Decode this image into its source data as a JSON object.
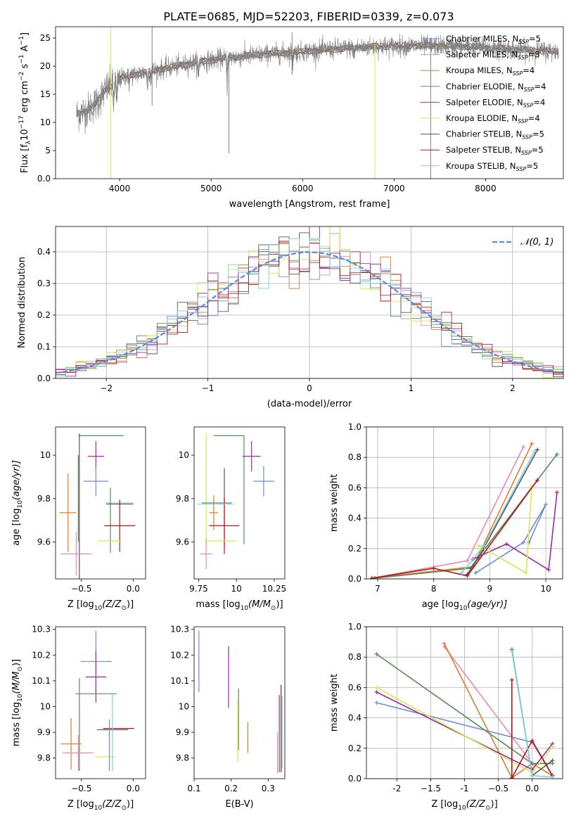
{
  "figure_title": "PLATE=0685, MJD=52203, FIBERID=0339, z=0.073",
  "colors": {
    "chabrier_miles": "#6a8fd8",
    "salpeter_miles": "#e88ab2",
    "kroupa_miles": "#e07b2a",
    "chabrier_elodie": "#5a8a5a",
    "salpeter_elodie": "#9b2aa8",
    "kroupa_elodie": "#d8e84a",
    "chabrier_stelib": "#555555",
    "salpeter_stelib": "#b01818",
    "kroupa_stelib": "#7fd2e0",
    "spectrum_data": "#808080",
    "gaussian": "#5b8bd9"
  },
  "chart_data": [
    {
      "id": "spectrum",
      "type": "line",
      "xlabel": "wavelength [Angstrom, rest frame]",
      "ylabel_main": "Flux [f",
      "ylabel_sub": "λ",
      "ylabel_mid": "10",
      "ylabel_sup1": "−17",
      "ylabel_rest": " erg cm",
      "ylabel_sup2": "−2",
      "ylabel_rest2": " s",
      "ylabel_sup3": "−1",
      "ylabel_rest3": " A",
      "ylabel_sup4": "−1",
      "ylabel_end": "]",
      "xlim": [
        3300,
        8850
      ],
      "ylim": [
        0,
        27
      ],
      "xticks": [
        4000,
        5000,
        6000,
        7000,
        8000
      ],
      "yticks": [
        0,
        5,
        10,
        15,
        20,
        25
      ],
      "continuum_anchor_points": [
        [
          3530,
          11.5
        ],
        [
          3650,
          12.2
        ],
        [
          3750,
          13.5
        ],
        [
          3860,
          16.0
        ],
        [
          3950,
          17.0
        ],
        [
          4050,
          18.2
        ],
        [
          4250,
          18.8
        ],
        [
          4500,
          19.6
        ],
        [
          4800,
          20.6
        ],
        [
          5100,
          21.3
        ],
        [
          5500,
          22.0
        ],
        [
          6000,
          22.6
        ],
        [
          6500,
          23.2
        ],
        [
          6800,
          23.5
        ],
        [
          7200,
          23.6
        ],
        [
          7600,
          23.6
        ],
        [
          8000,
          23.3
        ],
        [
          8500,
          22.8
        ],
        [
          8800,
          22.6
        ]
      ],
      "absorption_lines": [
        [
          3934,
          5
        ],
        [
          3969,
          4
        ],
        [
          4102,
          2
        ],
        [
          4304,
          3
        ],
        [
          4341,
          2
        ],
        [
          4861,
          3
        ],
        [
          5175,
          5
        ],
        [
          5890,
          3
        ],
        [
          6563,
          2
        ]
      ],
      "legend": [
        {
          "key": "chabrier_miles",
          "base": "Chabrier MILES, N",
          "sub": "SSP",
          "tail": "=5"
        },
        {
          "key": "salpeter_miles",
          "base": "Salpeter MILES, N",
          "sub": "SSP",
          "tail": "=3"
        },
        {
          "key": "kroupa_miles",
          "base": "Kroupa MILES, N",
          "sub": "SSP",
          "tail": "=4"
        },
        {
          "key": "chabrier_elodie",
          "base": "Chabrier ELODIE, N",
          "sub": "SSP",
          "tail": "=4"
        },
        {
          "key": "salpeter_elodie",
          "base": "Salpeter ELODIE, N",
          "sub": "SSP",
          "tail": "=4"
        },
        {
          "key": "kroupa_elodie",
          "base": "Kroupa ELODIE, N",
          "sub": "SSP",
          "tail": "=4"
        },
        {
          "key": "chabrier_stelib",
          "base": "Chabrier STELIB, N",
          "sub": "SSP",
          "tail": "=5"
        },
        {
          "key": "salpeter_stelib",
          "base": "Salpeter STELIB, N",
          "sub": "SSP",
          "tail": "=5"
        },
        {
          "key": "kroupa_stelib",
          "base": "Kroupa STELIB, N",
          "sub": "SSP",
          "tail": "=5"
        }
      ]
    },
    {
      "id": "residuals",
      "type": "bar",
      "xlabel": "(data-model)/error",
      "ylabel": "Normed distribution",
      "xlim": [
        -2.5,
        2.5
      ],
      "ylim": [
        0,
        0.48
      ],
      "xticks": [
        -2,
        -1,
        0,
        1,
        2
      ],
      "yticks": [
        0.0,
        0.1,
        0.2,
        0.3,
        0.4
      ],
      "grid": true,
      "bin_width": 0.1,
      "legend_label": "𝒩(0, 1)",
      "legend_position": "upper-right"
    },
    {
      "id": "age_vs_Z",
      "type": "errorbar",
      "xlabel": "Z [log",
      "xlabel_sub": "10",
      "xlabel_tail": "(Z/Z",
      "xlabel_sub2": "⊙",
      "xlabel_end": ")]",
      "ylabel": "age  [log",
      "ylabel_sub": "10",
      "ylabel_tail": "(age/yr)]",
      "xlim": [
        -0.75,
        0.12
      ],
      "ylim": [
        9.43,
        10.13
      ],
      "xticks": [
        -0.5,
        0.0
      ],
      "yticks": [
        9.6,
        9.8,
        10.0
      ],
      "points": [
        {
          "key": "chabrier_elodie",
          "x": -0.31,
          "y": 10.09,
          "xerr": 0.22,
          "yerr": 0.0
        },
        {
          "key": "salpeter_elodie",
          "x": -0.36,
          "y": 9.995,
          "xerr": 0.08,
          "yerr": 0.07
        },
        {
          "key": "chabrier_miles",
          "x": -0.36,
          "y": 9.88,
          "xerr": 0.12,
          "yerr": 0.07
        },
        {
          "key": "kroupa_miles",
          "x": -0.63,
          "y": 9.735,
          "xerr": 0.08,
          "yerr": 0.18
        },
        {
          "key": "chabrier_stelib",
          "x": -0.52,
          "y": 9.76,
          "xerr": 0.0,
          "yerr": 0.34
        },
        {
          "key": "chabrier_elodie",
          "x": -0.53,
          "y": 9.8,
          "xerr": 0.0,
          "yerr": 0.2
        },
        {
          "key": "kroupa_stelib",
          "x": -0.13,
          "y": 9.78,
          "xerr": 0.13,
          "yerr": 0.0
        },
        {
          "key": "chabrier_stelib",
          "x": -0.13,
          "y": 9.775,
          "xerr": 0.13,
          "yerr": 0.0
        },
        {
          "key": "chabrier_elodie",
          "x": -0.22,
          "y": 9.7,
          "xerr": 0.0,
          "yerr": 0.15
        },
        {
          "key": "salpeter_stelib",
          "x": -0.13,
          "y": 9.675,
          "xerr": 0.15,
          "yerr": 0.12
        },
        {
          "key": "kroupa_elodie",
          "x": -0.23,
          "y": 9.605,
          "xerr": 0.11,
          "yerr": 0.0
        },
        {
          "key": "salpeter_miles",
          "x": -0.55,
          "y": 9.545,
          "xerr": 0.15,
          "yerr": 0.1
        }
      ]
    },
    {
      "id": "age_vs_mass",
      "type": "errorbar",
      "xlabel": "mass [log",
      "xlabel_sub": "10",
      "xlabel_tail": "(M/M",
      "xlabel_sub2": "⊙",
      "xlabel_end": ")]",
      "xlim": [
        9.72,
        10.32
      ],
      "ylim": [
        9.43,
        10.13
      ],
      "xticks": [
        9.75,
        10.0,
        10.25
      ],
      "yticks": [
        9.6,
        9.8,
        10.0
      ],
      "points": [
        {
          "key": "chabrier_elodie",
          "x": 9.95,
          "y": 10.09,
          "xerr": 0.1,
          "yerr": 0.0
        },
        {
          "key": "chabrier_elodie",
          "x": 10.05,
          "y": 9.84,
          "xerr": 0.0,
          "yerr": 0.25
        },
        {
          "key": "salpeter_elodie",
          "x": 10.1,
          "y": 9.995,
          "xerr": 0.06,
          "yerr": 0.07
        },
        {
          "key": "chabrier_miles",
          "x": 10.18,
          "y": 9.88,
          "xerr": 0.07,
          "yerr": 0.07
        },
        {
          "key": "kroupa_elodie",
          "x": 9.8,
          "y": 9.83,
          "xerr": 0.0,
          "yerr": 0.27
        },
        {
          "key": "kroupa_miles",
          "x": 9.85,
          "y": 9.735,
          "xerr": 0.03,
          "yerr": 0.08
        },
        {
          "key": "chabrier_stelib",
          "x": 9.92,
          "y": 9.76,
          "xerr": 0.0,
          "yerr": 0.18
        },
        {
          "key": "salpeter_stelib",
          "x": 9.92,
          "y": 9.675,
          "xerr": 0.1,
          "yerr": 0.13
        },
        {
          "key": "kroupa_stelib",
          "x": 9.86,
          "y": 9.775,
          "xerr": 0.12,
          "yerr": 0.0
        },
        {
          "key": "chabrier_elodie",
          "x": 9.87,
          "y": 9.78,
          "xerr": 0.1,
          "yerr": 0.0
        },
        {
          "key": "kroupa_elodie",
          "x": 9.9,
          "y": 9.605,
          "xerr": 0.1,
          "yerr": 0.0
        },
        {
          "key": "salpeter_miles",
          "x": 9.8,
          "y": 9.545,
          "xerr": 0.04,
          "yerr": 0.07
        }
      ]
    },
    {
      "id": "weight_vs_age",
      "type": "line",
      "xlabel": "age  [log",
      "xlabel_sub": "10",
      "xlabel_tail": "(age/yr)]",
      "ylabel": "mass weight",
      "xlim": [
        6.8,
        10.3
      ],
      "ylim": [
        0.0,
        1.0
      ],
      "xticks": [
        7,
        8,
        9,
        10
      ],
      "yticks": [
        0.0,
        0.2,
        0.4,
        0.6,
        0.8,
        1.0
      ],
      "grid": true,
      "series": [
        {
          "key": "chabrier_miles",
          "points": [
            [
              8.75,
              0.04
            ],
            [
              9.6,
              0.24
            ],
            [
              10.0,
              0.49
            ],
            [
              9.7,
              0.24
            ]
          ]
        },
        {
          "key": "salpeter_miles",
          "points": [
            [
              6.9,
              0.005
            ],
            [
              8.6,
              0.12
            ],
            [
              9.6,
              0.87
            ]
          ]
        },
        {
          "key": "kroupa_miles",
          "points": [
            [
              6.9,
              0.005
            ],
            [
              8.7,
              0.08
            ],
            [
              9.75,
              0.89
            ]
          ]
        },
        {
          "key": "chabrier_elodie",
          "points": [
            [
              6.95,
              0.005
            ],
            [
              8.65,
              0.07
            ],
            [
              10.2,
              0.82
            ]
          ]
        },
        {
          "key": "salpeter_elodie",
          "points": [
            [
              8.7,
              0.13
            ],
            [
              9.3,
              0.23
            ],
            [
              10.05,
              0.06
            ],
            [
              10.2,
              0.57
            ]
          ]
        },
        {
          "key": "kroupa_elodie",
          "points": [
            [
              8.8,
              0.22
            ],
            [
              9.65,
              0.04
            ],
            [
              9.75,
              0.61
            ]
          ]
        },
        {
          "key": "chabrier_stelib",
          "points": [
            [
              8.6,
              0.03
            ],
            [
              8.8,
              0.14
            ],
            [
              9.85,
              0.85
            ]
          ]
        },
        {
          "key": "salpeter_stelib",
          "points": [
            [
              6.9,
              0.005
            ],
            [
              8.0,
              0.07
            ],
            [
              8.6,
              0.02
            ],
            [
              9.85,
              0.65
            ]
          ]
        },
        {
          "key": "kroupa_stelib",
          "points": [
            [
              8.5,
              0.04
            ],
            [
              8.9,
              0.22
            ],
            [
              9.8,
              0.84
            ]
          ]
        }
      ]
    },
    {
      "id": "mass_vs_Z",
      "type": "errorbar",
      "xlabel": "Z [log",
      "xlabel_sub": "10",
      "xlabel_tail": "(Z/Z",
      "xlabel_sub2": "⊙",
      "xlabel_end": ")]",
      "ylabel": "mass [log",
      "ylabel_sub": "10",
      "ylabel_tail": "(M/M",
      "ylabel_sub2": "⊙",
      "ylabel_end": ")]",
      "xlim": [
        -0.75,
        0.12
      ],
      "ylim": [
        9.72,
        10.31
      ],
      "xticks": [
        -0.5,
        0.0
      ],
      "yticks": [
        9.8,
        9.9,
        10.0,
        10.1,
        10.2,
        10.3
      ],
      "points": [
        {
          "key": "chabrier_miles",
          "x": -0.36,
          "y": 10.175,
          "xerr": 0.15,
          "yerr": 0.12
        },
        {
          "key": "salpeter_elodie",
          "x": -0.36,
          "y": 10.115,
          "xerr": 0.1,
          "yerr": 0.1
        },
        {
          "key": "chabrier_elodie",
          "x": -0.36,
          "y": 10.05,
          "xerr": 0.2,
          "yerr": 0.0
        },
        {
          "key": "chabrier_elodie",
          "x": -0.52,
          "y": 9.93,
          "xerr": 0.0,
          "yerr": 0.18
        },
        {
          "key": "kroupa_miles",
          "x": -0.6,
          "y": 9.855,
          "xerr": 0.1,
          "yerr": 0.1
        },
        {
          "key": "salpeter_miles",
          "x": -0.53,
          "y": 9.82,
          "xerr": 0.15,
          "yerr": 0.07
        },
        {
          "key": "kroupa_elodie",
          "x": -0.27,
          "y": 9.805,
          "xerr": 0.1,
          "yerr": 0.0
        },
        {
          "key": "chabrier_stelib",
          "x": -0.2,
          "y": 9.91,
          "xerr": 0.15,
          "yerr": 0.0
        },
        {
          "key": "salpeter_stelib",
          "x": -0.14,
          "y": 9.915,
          "xerr": 0.15,
          "yerr": 0.0
        },
        {
          "key": "kroupa_stelib",
          "x": -0.2,
          "y": 9.9,
          "xerr": 0.0,
          "yerr": 0.15
        },
        {
          "key": "chabrier_miles",
          "x": -0.23,
          "y": 9.85,
          "xerr": 0.0,
          "yerr": 0.1
        }
      ]
    },
    {
      "id": "mass_vs_ebv",
      "type": "errorbar",
      "xlabel": "E(B-V)",
      "xlim": [
        0.1,
        0.345
      ],
      "ylim": [
        9.72,
        10.31
      ],
      "xticks": [
        0.1,
        0.2,
        0.3
      ],
      "yticks": [
        9.8,
        9.9,
        10.0,
        10.1,
        10.2,
        10.3
      ],
      "points": [
        {
          "key": "chabrier_miles",
          "x": 0.113,
          "y": 10.175,
          "xerr": 0.0,
          "yerr": 0.12
        },
        {
          "key": "salpeter_elodie",
          "x": 0.193,
          "y": 10.115,
          "xerr": 0.0,
          "yerr": 0.12
        },
        {
          "key": "chabrier_elodie",
          "x": 0.22,
          "y": 9.95,
          "xerr": 0.0,
          "yerr": 0.12
        },
        {
          "key": "kroupa_elodie",
          "x": 0.218,
          "y": 9.905,
          "xerr": 0.0,
          "yerr": 0.12
        },
        {
          "key": "kroupa_miles",
          "x": 0.245,
          "y": 9.88,
          "xerr": 0.0,
          "yerr": 0.06
        },
        {
          "key": "salpeter_miles",
          "x": 0.325,
          "y": 9.82,
          "xerr": 0.0,
          "yerr": 0.08
        },
        {
          "key": "chabrier_stelib",
          "x": 0.33,
          "y": 9.895,
          "xerr": 0.0,
          "yerr": 0.15
        },
        {
          "key": "salpeter_stelib",
          "x": 0.335,
          "y": 9.915,
          "xerr": 0.0,
          "yerr": 0.17
        },
        {
          "key": "kroupa_stelib",
          "x": 0.338,
          "y": 9.9,
          "xerr": 0.0,
          "yerr": 0.14
        }
      ]
    },
    {
      "id": "weight_vs_Z",
      "type": "line",
      "xlabel": "Z [log",
      "xlabel_sub": "10",
      "xlabel_tail": "(Z/Z",
      "xlabel_sub2": "⊙",
      "xlabel_end": ")]",
      "ylabel": "mass weight",
      "xlim": [
        -2.45,
        0.45
      ],
      "ylim": [
        0.0,
        1.0
      ],
      "xticks": [
        -2.0,
        -1.5,
        -1.0,
        -0.5,
        0.0
      ],
      "yticks": [
        0.0,
        0.2,
        0.4,
        0.6,
        0.8,
        1.0
      ],
      "grid": true,
      "series": [
        {
          "key": "chabrier_miles",
          "points": [
            [
              -2.3,
              0.5
            ],
            [
              0.0,
              0.24
            ],
            [
              0.3,
              0.02
            ]
          ]
        },
        {
          "key": "salpeter_miles",
          "points": [
            [
              -1.3,
              0.87
            ],
            [
              0.0,
              0.1
            ],
            [
              0.3,
              0.02
            ]
          ]
        },
        {
          "key": "kroupa_miles",
          "points": [
            [
              -1.3,
              0.89
            ],
            [
              -0.3,
              0.005
            ],
            [
              0.0,
              0.1
            ],
            [
              0.3,
              0.02
            ]
          ]
        },
        {
          "key": "chabrier_elodie",
          "points": [
            [
              -2.3,
              0.82
            ],
            [
              0.0,
              0.1
            ],
            [
              0.3,
              0.1
            ]
          ]
        },
        {
          "key": "salpeter_elodie",
          "points": [
            [
              -2.3,
              0.57
            ],
            [
              0.0,
              0.06
            ],
            [
              0.3,
              0.23
            ]
          ]
        },
        {
          "key": "kroupa_elodie",
          "points": [
            [
              -2.3,
              0.6
            ],
            [
              0.0,
              0.04
            ],
            [
              0.3,
              0.21
            ]
          ]
        },
        {
          "key": "chabrier_stelib",
          "points": [
            [
              -0.3,
              0.85
            ],
            [
              0.0,
              0.02
            ],
            [
              0.3,
              0.12
            ]
          ]
        },
        {
          "key": "salpeter_stelib",
          "points": [
            [
              -0.3,
              0.65
            ],
            [
              -0.3,
              0.005
            ],
            [
              0.0,
              0.25
            ],
            [
              0.3,
              0.02
            ]
          ]
        },
        {
          "key": "kroupa_stelib",
          "points": [
            [
              -0.3,
              0.84
            ],
            [
              0.0,
              0.02
            ],
            [
              0.3,
              0.01
            ]
          ]
        }
      ]
    }
  ]
}
